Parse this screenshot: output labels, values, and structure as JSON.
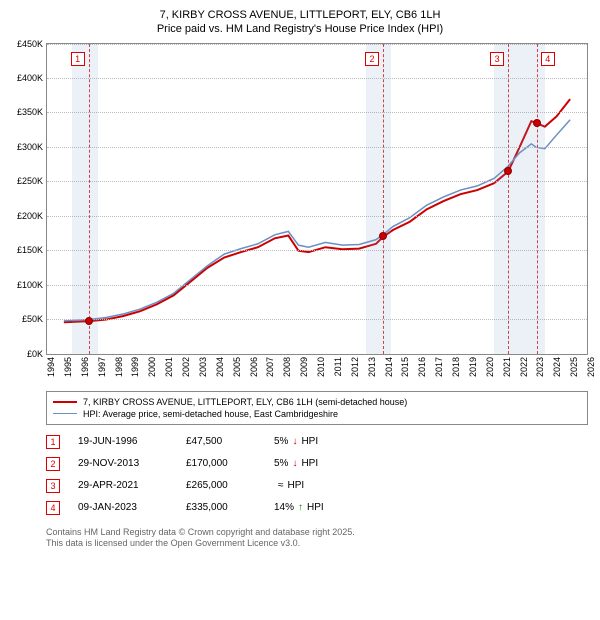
{
  "title": {
    "line1": "7, KIRBY CROSS AVENUE, LITTLEPORT, ELY, CB6 1LH",
    "line2": "Price paid vs. HM Land Registry's House Price Index (HPI)"
  },
  "chart": {
    "type": "line",
    "background_color": "#ffffff",
    "xlim": [
      1994,
      2026
    ],
    "ylim": [
      0,
      450000
    ],
    "ytick_step": 50000,
    "y_tick_labels": [
      "£0K",
      "£50K",
      "£100K",
      "£150K",
      "£200K",
      "£250K",
      "£300K",
      "£350K",
      "£400K",
      "£450K"
    ],
    "x_tick_labels": [
      "1994",
      "1995",
      "1996",
      "1997",
      "1998",
      "1999",
      "2000",
      "2001",
      "2002",
      "2003",
      "2004",
      "2005",
      "2006",
      "2007",
      "2008",
      "2009",
      "2010",
      "2011",
      "2012",
      "2013",
      "2014",
      "2015",
      "2016",
      "2017",
      "2018",
      "2019",
      "2020",
      "2021",
      "2022",
      "2023",
      "2024",
      "2025",
      "2026"
    ],
    "grid_color": "#bbbbbb",
    "shade_color": "rgba(130,160,200,0.15)",
    "shade_bands": [
      {
        "start": 1995.5,
        "end": 1997.0
      },
      {
        "start": 2012.9,
        "end": 2014.4
      },
      {
        "start": 2020.5,
        "end": 2022.0
      },
      {
        "start": 2022.0,
        "end": 2023.5
      }
    ],
    "marker_lines": [
      {
        "x": 1996.47,
        "label": "1"
      },
      {
        "x": 2013.91,
        "label": "2"
      },
      {
        "x": 2021.33,
        "label": "3"
      },
      {
        "x": 2023.02,
        "label": "4"
      }
    ],
    "series": [
      {
        "name": "property",
        "color": "#cc0000",
        "width": 2,
        "points": [
          [
            1995.0,
            46000
          ],
          [
            1996.47,
            47500
          ],
          [
            1997.5,
            50000
          ],
          [
            1998.5,
            55000
          ],
          [
            1999.5,
            62000
          ],
          [
            2000.5,
            72000
          ],
          [
            2001.5,
            85000
          ],
          [
            2002.5,
            105000
          ],
          [
            2003.5,
            125000
          ],
          [
            2004.5,
            140000
          ],
          [
            2005.5,
            148000
          ],
          [
            2006.5,
            155000
          ],
          [
            2007.5,
            168000
          ],
          [
            2008.3,
            172000
          ],
          [
            2008.9,
            150000
          ],
          [
            2009.5,
            148000
          ],
          [
            2010.5,
            155000
          ],
          [
            2011.5,
            152000
          ],
          [
            2012.5,
            153000
          ],
          [
            2013.5,
            160000
          ],
          [
            2013.91,
            170000
          ],
          [
            2014.5,
            180000
          ],
          [
            2015.5,
            192000
          ],
          [
            2016.5,
            210000
          ],
          [
            2017.5,
            222000
          ],
          [
            2018.5,
            232000
          ],
          [
            2019.5,
            238000
          ],
          [
            2020.5,
            248000
          ],
          [
            2021.33,
            265000
          ],
          [
            2022.0,
            300000
          ],
          [
            2022.7,
            338000
          ],
          [
            2023.02,
            335000
          ],
          [
            2023.5,
            330000
          ],
          [
            2024.2,
            345000
          ],
          [
            2025.0,
            370000
          ]
        ],
        "sale_points": [
          {
            "x": 1996.47,
            "y": 47500
          },
          {
            "x": 2013.91,
            "y": 170000
          },
          {
            "x": 2021.33,
            "y": 265000
          },
          {
            "x": 2023.02,
            "y": 335000
          }
        ]
      },
      {
        "name": "hpi",
        "color": "#6a8fc4",
        "width": 1.5,
        "points": [
          [
            1995.0,
            48000
          ],
          [
            1996.5,
            50000
          ],
          [
            1997.5,
            53000
          ],
          [
            1998.5,
            58000
          ],
          [
            1999.5,
            65000
          ],
          [
            2000.5,
            75000
          ],
          [
            2001.5,
            88000
          ],
          [
            2002.5,
            108000
          ],
          [
            2003.5,
            128000
          ],
          [
            2004.5,
            145000
          ],
          [
            2005.5,
            153000
          ],
          [
            2006.5,
            160000
          ],
          [
            2007.5,
            173000
          ],
          [
            2008.3,
            178000
          ],
          [
            2008.9,
            158000
          ],
          [
            2009.5,
            155000
          ],
          [
            2010.5,
            162000
          ],
          [
            2011.5,
            158000
          ],
          [
            2012.5,
            159000
          ],
          [
            2013.5,
            166000
          ],
          [
            2014.0,
            175000
          ],
          [
            2014.5,
            185000
          ],
          [
            2015.5,
            198000
          ],
          [
            2016.5,
            216000
          ],
          [
            2017.5,
            228000
          ],
          [
            2018.5,
            238000
          ],
          [
            2019.5,
            244000
          ],
          [
            2020.5,
            255000
          ],
          [
            2021.3,
            272000
          ],
          [
            2022.0,
            292000
          ],
          [
            2022.7,
            305000
          ],
          [
            2023.0,
            300000
          ],
          [
            2023.5,
            298000
          ],
          [
            2024.2,
            318000
          ],
          [
            2025.0,
            340000
          ]
        ]
      }
    ]
  },
  "legend": {
    "items": [
      {
        "color": "#cc0000",
        "label": "7, KIRBY CROSS AVENUE, LITTLEPORT, ELY, CB6 1LH (semi-detached house)"
      },
      {
        "color": "#6a8fc4",
        "label": "HPI: Average price, semi-detached house, East Cambridgeshire"
      }
    ]
  },
  "sales": [
    {
      "n": "1",
      "date": "19-JUN-1996",
      "price": "£47,500",
      "diff_pct": "5%",
      "diff_dir": "down",
      "diff_suffix": "HPI"
    },
    {
      "n": "2",
      "date": "29-NOV-2013",
      "price": "£170,000",
      "diff_pct": "5%",
      "diff_dir": "down",
      "diff_suffix": "HPI"
    },
    {
      "n": "3",
      "date": "29-APR-2021",
      "price": "£265,000",
      "diff_pct": "",
      "diff_dir": "approx",
      "diff_suffix": "HPI"
    },
    {
      "n": "4",
      "date": "09-JAN-2023",
      "price": "£335,000",
      "diff_pct": "14%",
      "diff_dir": "up",
      "diff_suffix": "HPI"
    }
  ],
  "footer": {
    "line1": "Contains HM Land Registry data © Crown copyright and database right 2025.",
    "line2": "This data is licensed under the Open Government Licence v3.0."
  },
  "icons": {
    "down": "↓",
    "up": "↑",
    "approx": "≈"
  }
}
